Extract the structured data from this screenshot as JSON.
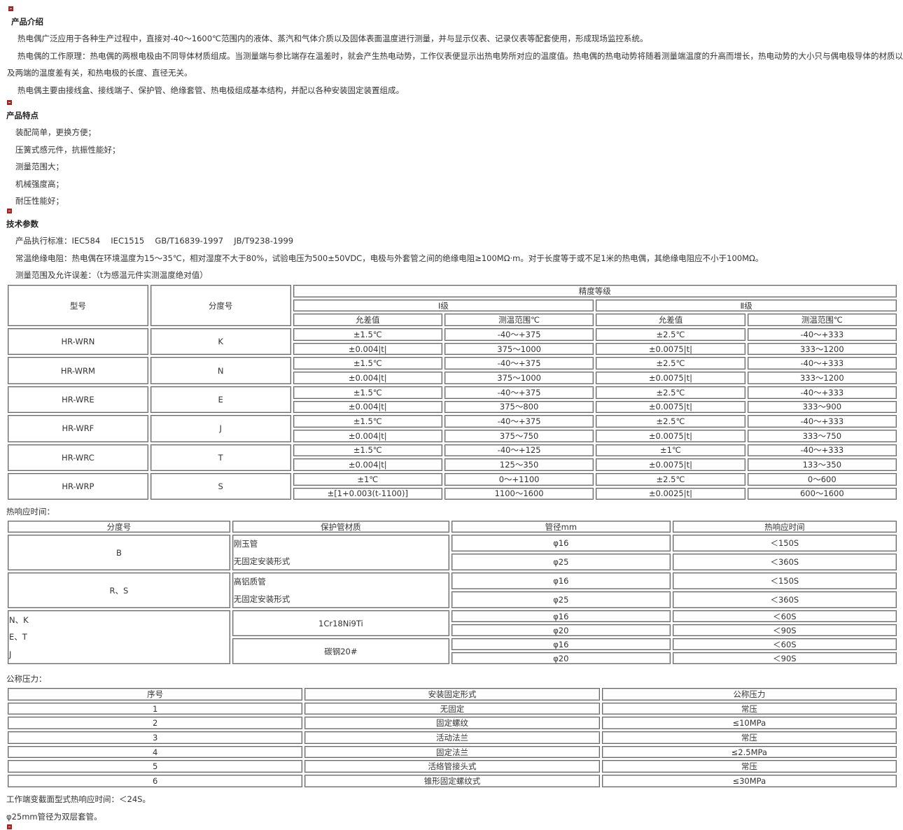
{
  "intro": {
    "title": "产品介绍",
    "paragraphs": [
      "热电偶广泛应用于各种生产过程中，直接对-40～1600℃范围内的液体、蒸汽和气体介质以及固体表面温度进行测量，并与显示仪表、记录仪表等配套使用，形成现场监控系统。",
      "热电偶的工作原理：热电偶的两根电极由不同导体材质组成。当测量端与参比端存在温差时，就会产生热电动势，工作仪表便显示出热电势所对应的温度值。热电偶的热电动势将随着测量端温度的升高而增长，热电动势的大小只与偶电极导体的材质以",
      "及两端的温度差有关，和热电极的长度、直径无关。",
      "热电偶主要由接线盒、接线端子、保护管、绝缘套管、热电极组成基本结构，并配以各种安装固定装置组成。"
    ]
  },
  "features": {
    "title": "产品特点",
    "items": [
      "装配简单，更换方便；",
      "压簧式感元件，抗振性能好；",
      "测量范围大；",
      "机械强度高；",
      "耐压性能好；"
    ]
  },
  "tech": {
    "title": "技术参数",
    "lines": [
      "产品执行标准：IEC584　 IEC1515　 GB/T16839-1997　 JB/T9238-1999",
      "常温绝缘电阻：热电偶在环境温度为15～35℃，相对湿度不大于80%，试验电压为500±50VDC，电极与外套管之间的绝缘电阻≥100MΩ·m。对于长度等于或不足1米的热电偶，其绝缘电阻应不小于100MΩ。",
      "测量范围及允许误差：（t为感温元件实测温度绝对值）"
    ]
  },
  "accuracy_table": {
    "headers": {
      "model": "型号",
      "grade": "分度号",
      "accuracy": "精度等级",
      "class1": "Ⅰ级",
      "class2": "Ⅱ级",
      "tolerance": "允差值",
      "range": "测温范围℃"
    },
    "rows": [
      {
        "model": "HR-WRN",
        "grade": "K",
        "lines": [
          [
            "±1.5℃",
            "-40～+375",
            "±2.5℃",
            "-40～+333"
          ],
          [
            "±0.004|t|",
            "375～1000",
            "±0.0075|t|",
            "333～1200"
          ]
        ]
      },
      {
        "model": "HR-WRM",
        "grade": "N",
        "lines": [
          [
            "±1.5℃",
            "-40～+375",
            "±2.5℃",
            "-40～+333"
          ],
          [
            "±0.004|t|",
            "375～1000",
            "±0.0075|t|",
            "333～1200"
          ]
        ]
      },
      {
        "model": "HR-WRE",
        "grade": "E",
        "lines": [
          [
            "±1.5℃",
            "-40～+375",
            "±2.5℃",
            "-40～+333"
          ],
          [
            "±0.004|t|",
            "375～800",
            "±0.0075|t|",
            "333～900"
          ]
        ]
      },
      {
        "model": "HR-WRF",
        "grade": "J",
        "lines": [
          [
            "±1.5℃",
            "-40～+375",
            "±2.5℃",
            "-40～+333"
          ],
          [
            "±0.004|t|",
            "375～750",
            "±0.0075|t|",
            "333～750"
          ]
        ]
      },
      {
        "model": "HR-WRC",
        "grade": "T",
        "lines": [
          [
            "±1.5℃",
            "-40～+125",
            "±1℃",
            "-40～+333"
          ],
          [
            "±0.004|t|",
            "125～350",
            "±0.0075|t|",
            "133～350"
          ]
        ]
      },
      {
        "model": "HR-WRP",
        "grade": "S",
        "lines": [
          [
            "±1℃",
            "0～+1100",
            "±2.5℃",
            "0～600"
          ],
          [
            "±[1+0.003(t-1100)]",
            "1100～1600",
            "±0.0025|t|",
            "600～1600"
          ]
        ]
      }
    ]
  },
  "response": {
    "label": "热响应时间：",
    "headers": [
      "分度号",
      "保护管材质",
      "管径mm",
      "热响应时间"
    ],
    "groups": [
      {
        "grade_lines": [
          "B"
        ],
        "materials": [
          {
            "lines": [
              "刚玉管",
              "无固定安装形式"
            ],
            "rows": [
              [
                "φ16",
                "＜150S"
              ],
              [
                "φ25",
                "＜360S"
              ]
            ]
          }
        ]
      },
      {
        "grade_lines": [
          "R、S"
        ],
        "materials": [
          {
            "lines": [
              "高铝质管",
              "无固定安装形式"
            ],
            "rows": [
              [
                "φ16",
                "＜150S"
              ],
              [
                "φ25",
                "＜360S"
              ]
            ]
          }
        ]
      },
      {
        "grade_lines": [
          "N、K",
          "E、T",
          "J"
        ],
        "materials": [
          {
            "lines": [
              "1Cr18Ni9Ti"
            ],
            "rows": [
              [
                "φ16",
                "＜60S"
              ],
              [
                "φ20",
                "＜90S"
              ]
            ]
          },
          {
            "lines": [
              "碳钢20#"
            ],
            "rows": [
              [
                "φ16",
                "＜60S"
              ],
              [
                "φ20",
                "＜90S"
              ]
            ]
          }
        ]
      }
    ]
  },
  "pressure": {
    "label": "公称压力：",
    "headers": [
      "序号",
      "安装固定形式",
      "公称压力"
    ],
    "rows": [
      [
        "1",
        "无固定",
        "常压"
      ],
      [
        "2",
        "固定螺纹",
        "≤10MPa"
      ],
      [
        "3",
        "活动法兰",
        "常压"
      ],
      [
        "4",
        "固定法兰",
        "≤2.5MPa"
      ],
      [
        "5",
        "活络管接头式",
        "常压"
      ],
      [
        "6",
        "锥形固定螺纹式",
        "≤30MPa"
      ]
    ]
  },
  "notes": [
    "工作端变截面型式热响应时间：＜24S。",
    "φ25mm管径为双层套管。"
  ],
  "colors": {
    "icon": "#bb2222",
    "text": "#333333",
    "border": "#666666"
  }
}
